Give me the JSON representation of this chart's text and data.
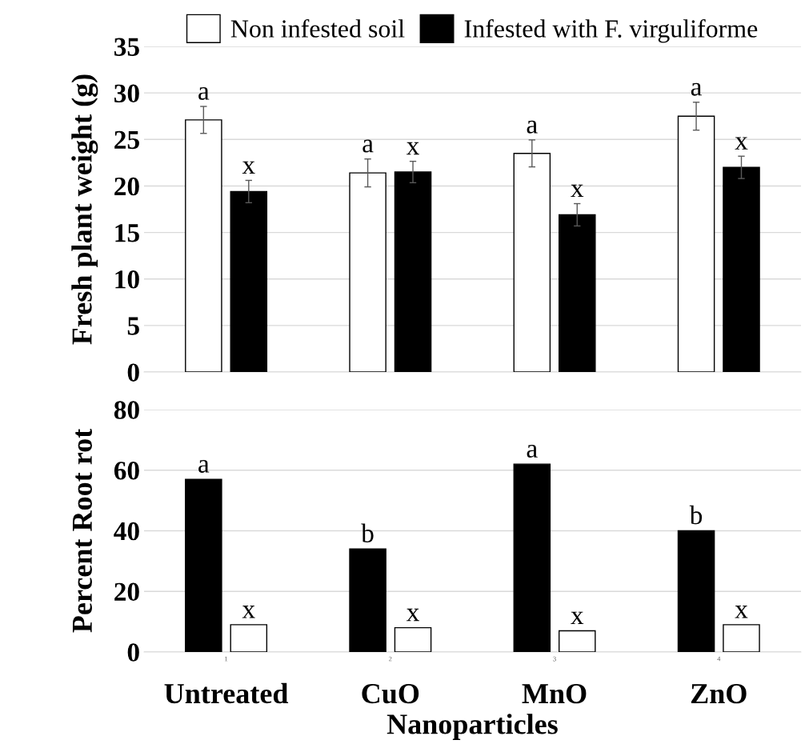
{
  "chart_data": [
    {
      "type": "bar",
      "ylabel": "Fresh plant weight (g)",
      "categories": [
        null,
        null,
        null,
        null
      ],
      "ylim": [
        0,
        35
      ],
      "yticks": [
        0,
        5,
        10,
        15,
        20,
        25,
        30,
        35
      ],
      "grid": "y",
      "legend": "top",
      "tick_labels": "y",
      "series": [
        {
          "name": "Non infested soil",
          "color": "#ffffff",
          "values": [
            27.1,
            21.4,
            23.5,
            27.5
          ],
          "errors": [
            1.45,
            1.5,
            1.45,
            1.5
          ],
          "value_labels": [
            "a",
            "a",
            "a",
            "a"
          ]
        },
        {
          "name": "Infested with F. virguliforme",
          "color": "#000000",
          "values": [
            19.4,
            21.5,
            16.9,
            22.0
          ],
          "errors": [
            1.2,
            1.15,
            1.2,
            1.2
          ],
          "value_labels": [
            "x",
            "x",
            "x",
            "x"
          ]
        }
      ]
    },
    {
      "type": "bar",
      "ylabel": "Percent Root rot",
      "xlabel": "Nanoparticles",
      "categories": [
        "Untreated",
        "CuO",
        "MnO",
        "ZnO"
      ],
      "ylim": [
        0,
        80
      ],
      "yticks": [
        0,
        20,
        40,
        60,
        80
      ],
      "grid": "y",
      "annotations": [
        "1",
        "2",
        "3",
        "4"
      ],
      "series": [
        {
          "color": "#000000",
          "values": [
            57,
            34,
            62,
            40
          ],
          "value_labels": [
            "a",
            "b",
            "a",
            "b"
          ]
        },
        {
          "color": "#ffffff",
          "values": [
            9,
            8,
            7,
            9
          ],
          "value_labels": [
            "x",
            "x",
            "x",
            "x"
          ]
        }
      ]
    }
  ]
}
